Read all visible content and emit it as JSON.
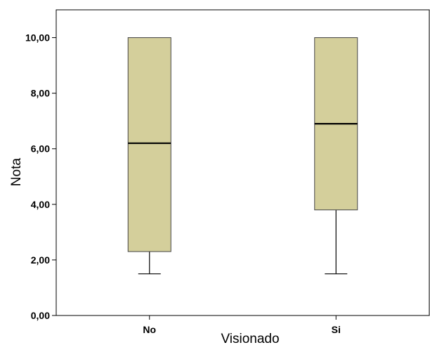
{
  "chart_data": {
    "type": "boxplot",
    "title": "",
    "xlabel": "Visionado",
    "ylabel": "Nota",
    "ylim": [
      0,
      11
    ],
    "y_ticks": [
      0,
      2,
      4,
      6,
      8,
      10
    ],
    "y_tick_labels": [
      "0,00",
      "2,00",
      "4,00",
      "6,00",
      "8,00",
      "10,00"
    ],
    "categories": [
      "No",
      "Si"
    ],
    "boxes": [
      {
        "category": "No",
        "whisker_low": 1.5,
        "q1": 2.3,
        "median": 6.2,
        "q3": 10.0,
        "whisker_high": 10.0
      },
      {
        "category": "Si",
        "whisker_low": 1.5,
        "q1": 3.8,
        "median": 6.9,
        "q3": 10.0,
        "whisker_high": 10.0
      }
    ],
    "grid": false,
    "colors": {
      "box_fill": "#d4cf9b",
      "box_stroke": "#444444",
      "median": "#000000",
      "whisker": "#000000",
      "axis": "#000000"
    }
  }
}
